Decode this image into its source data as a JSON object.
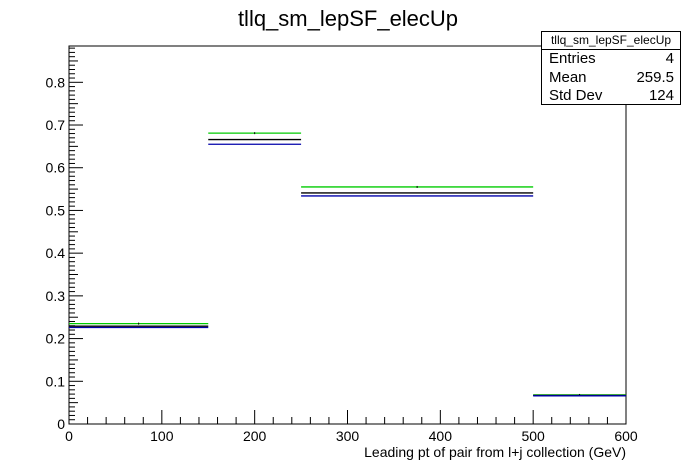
{
  "chart_data": {
    "type": "bar",
    "style": "step-histogram",
    "title": "tllq_sm_lepSF_elecUp",
    "xlabel": "Leading pt of pair from l+j collection (GeV)",
    "ylabel": "",
    "xlim": [
      0,
      600
    ],
    "ylim": [
      0,
      0.885
    ],
    "x_ticks": [
      0,
      100,
      200,
      300,
      400,
      500,
      600
    ],
    "y_ticks": [
      0,
      0.1,
      0.2,
      0.3,
      0.4,
      0.5,
      0.6,
      0.7,
      0.8
    ],
    "bin_edges": [
      0,
      150,
      250,
      500,
      600
    ],
    "series": [
      {
        "color": "#00cc00",
        "values": [
          0.235,
          0.681,
          0.555,
          0.068
        ]
      },
      {
        "color": "#000000",
        "values": [
          0.229,
          0.666,
          0.541,
          0.067
        ]
      },
      {
        "color": "#0000aa",
        "values": [
          0.226,
          0.655,
          0.534,
          0.066
        ]
      }
    ],
    "grid": false,
    "legend": "none"
  },
  "stats": {
    "title": "tllq_sm_lepSF_elecUp",
    "rows": [
      {
        "label": "Entries",
        "value": "4"
      },
      {
        "label": "Mean",
        "value": "259.5"
      },
      {
        "label": "Std Dev",
        "value": "124"
      }
    ]
  }
}
